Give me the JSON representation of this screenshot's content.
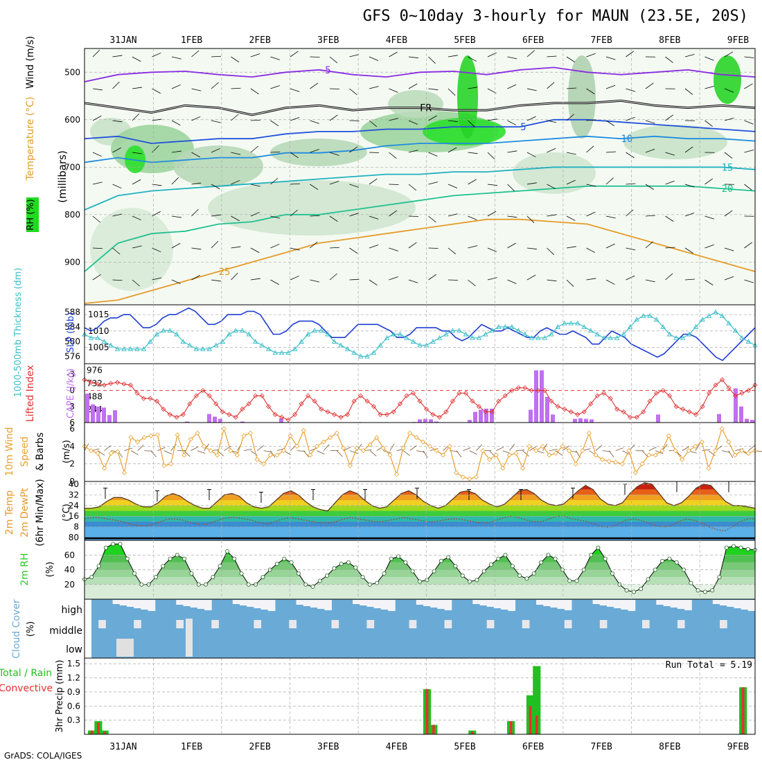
{
  "title": "GFS 0~10day 3-hourly for MAUN (23.5E, 20S)",
  "footer": "GrADS: COLA/IGES",
  "colors": {
    "rh_green": "#1edc1e",
    "temp_purple": "#8a2be2",
    "temp_blue": "#1e50dc",
    "temp_teal": "#20b0a0",
    "temp_orange": "#e69a28",
    "temp_red": "#d82040",
    "slp_blue": "#1e3cd2",
    "thickness_cyan": "#3cbec8",
    "cape_violet": "#c070f0",
    "li_red": "#e03030",
    "wind_orange": "#e8a030",
    "rh2m_green": "#28c828",
    "cloud_blue": "#6aaad6",
    "rain_green": "#20c020",
    "conv_red": "#e83030"
  },
  "chart_data": [
    {
      "id": "upper_air",
      "type": "heatmap",
      "ylabel": "(millibars)",
      "left_label": "Wind (m/s)",
      "temperature_label": "Temperature (°C)",
      "rh_label": "RH (%)",
      "y_ticks": [
        500,
        600,
        700,
        800,
        900
      ],
      "contours": [
        {
          "label": "-5",
          "level": -5,
          "color": "#8a2be2",
          "pressure": [
            520,
            505,
            500,
            498,
            505,
            510,
            500,
            495,
            505,
            510,
            500,
            498,
            505,
            495,
            490,
            500,
            505,
            500,
            495,
            505,
            510
          ]
        },
        {
          "label": "FR",
          "level": 0,
          "color": "#000000",
          "pressure": [
            565,
            575,
            585,
            570,
            575,
            590,
            575,
            570,
            580,
            575,
            575,
            580,
            580,
            570,
            565,
            565,
            560,
            570,
            575,
            570,
            575
          ]
        },
        {
          "label": "5",
          "level": 5,
          "color": "#1e50dc",
          "pressure": [
            640,
            635,
            650,
            645,
            640,
            640,
            630,
            625,
            625,
            620,
            620,
            615,
            615,
            615,
            600,
            600,
            605,
            610,
            615,
            620,
            625
          ]
        },
        {
          "label": "10",
          "level": 10,
          "color": "#1e8ce0",
          "pressure": [
            690,
            680,
            690,
            685,
            680,
            680,
            670,
            670,
            665,
            655,
            650,
            650,
            650,
            645,
            640,
            635,
            640,
            635,
            640,
            640,
            645
          ]
        },
        {
          "label": "15",
          "level": 15,
          "color": "#20b0c0",
          "pressure": [
            790,
            760,
            750,
            745,
            740,
            735,
            730,
            725,
            720,
            715,
            715,
            710,
            710,
            705,
            700,
            700,
            700,
            700,
            700,
            700,
            705
          ]
        },
        {
          "label": "20",
          "level": 20,
          "color": "#20c090",
          "pressure": [
            920,
            860,
            840,
            835,
            820,
            815,
            800,
            800,
            790,
            780,
            770,
            760,
            755,
            750,
            745,
            740,
            740,
            740,
            740,
            745,
            750
          ]
        },
        {
          "label": "25",
          "level": 25,
          "color": "#e69a28",
          "pressure": [
            990,
            980,
            960,
            940,
            920,
            900,
            880,
            860,
            850,
            840,
            830,
            820,
            810,
            810,
            815,
            820,
            840,
            860,
            880,
            900,
            920
          ]
        }
      ]
    },
    {
      "id": "slp_thickness",
      "type": "line",
      "left_label": "1000-500mb Thickness (dm)",
      "right_label": "SLP (mb)",
      "thickness_ticks": [
        576,
        580,
        584,
        588
      ],
      "slp_ticks": [
        1005,
        1010,
        1015
      ],
      "slp": [
        1011,
        1010,
        1011,
        1013,
        1014,
        1014,
        1015,
        1015,
        1013,
        1011,
        1011,
        1012,
        1014,
        1015,
        1015,
        1016,
        1017,
        1016,
        1014,
        1012,
        1012,
        1013,
        1015,
        1015,
        1015,
        1016,
        1016,
        1015,
        1012,
        1009,
        1009,
        1010,
        1012,
        1013,
        1013,
        1013,
        1012,
        1010,
        1008,
        1008,
        1008,
        1010,
        1012,
        1012,
        1012,
        1012,
        1011,
        1010,
        1008,
        1008,
        1009,
        1011,
        1011,
        1011,
        1011,
        1010,
        1010,
        1008,
        1007,
        1008,
        1010,
        1012,
        1011,
        1010,
        1010,
        1011,
        1010,
        1009,
        1008,
        1008,
        1010,
        1011,
        1010,
        1009,
        1009,
        1010,
        1009,
        1008,
        1006,
        1006,
        1008,
        1010,
        1009,
        1008,
        1006,
        1005,
        1004,
        1003,
        1002,
        1003,
        1005,
        1007,
        1009,
        1009,
        1008,
        1006,
        1004,
        1002,
        1001,
        1003,
        1005,
        1007,
        1009,
        1011
      ],
      "thickness": [
        582,
        581,
        581,
        580,
        579,
        578,
        578,
        578,
        578,
        578,
        580,
        582,
        583,
        583,
        582,
        580,
        579,
        578,
        578,
        578,
        579,
        580,
        582,
        583,
        583,
        582,
        580,
        579,
        578,
        577,
        577,
        577,
        578,
        580,
        582,
        583,
        583,
        582,
        580,
        579,
        578,
        577,
        576,
        576,
        577,
        579,
        581,
        582,
        582,
        581,
        580,
        579,
        579,
        580,
        581,
        582,
        583,
        583,
        582,
        581,
        581,
        582,
        583,
        584,
        584,
        584,
        583,
        582,
        581,
        581,
        581,
        582,
        584,
        585,
        585,
        585,
        584,
        583,
        582,
        581,
        581,
        581,
        582,
        584,
        586,
        587,
        587,
        586,
        584,
        582,
        581,
        581,
        582,
        584,
        586,
        587,
        588,
        587,
        585,
        583,
        581,
        580,
        579
      ]
    },
    {
      "id": "cape_li",
      "type": "bar",
      "left_label": "Lifted Index",
      "right_label": "CAPE (J/kg)",
      "li_ticks": [
        -3,
        0,
        3,
        6
      ],
      "cape_ticks": [
        244,
        488,
        732,
        976
      ],
      "lifted_index": [
        -2,
        -1.5,
        -1.2,
        -1.0,
        -1.3,
        -1.5,
        -1.2,
        -1.0,
        0.5,
        1.5,
        1.5,
        2.0,
        3.5,
        4.5,
        5.0,
        4.5,
        2.5,
        1.0,
        0.0,
        1.0,
        2.5,
        4.0,
        4.5,
        5.0,
        3.5,
        2.5,
        1.0,
        1.0,
        3.0,
        4.5,
        5.0,
        5.5,
        4.5,
        2.5,
        1.0,
        2.0,
        3.5,
        4.0,
        4.5,
        5.0,
        4.5,
        2.0,
        1.0,
        2.0,
        3.0,
        4.5,
        4.5,
        4.0,
        2.5,
        1.0,
        0.5,
        2.0,
        3.5,
        4.5,
        5.0,
        4.0,
        2.0,
        0.5,
        0.5,
        2.0,
        3.0,
        4.0,
        4.0,
        2.0,
        1.0,
        0.0,
        -0.5,
        -0.5,
        0.0,
        0.0,
        0.0,
        2.0,
        3.0,
        3.5,
        4.0,
        4.5,
        4.0,
        2.5,
        1.0,
        0.5,
        1.5,
        3.5,
        4.0,
        5.0,
        5.0,
        4.0,
        2.0,
        0.5,
        0.0,
        1.0,
        3.0,
        3.5,
        4.0,
        4.5,
        3.0,
        0.5,
        -1.0,
        -2.0,
        -0.5,
        1.0,
        0.5,
        0.0,
        -1.0
      ],
      "cape": [
        540,
        340,
        300,
        280,
        140,
        230,
        0,
        0,
        0,
        0,
        0,
        0,
        0,
        0,
        0,
        0,
        0,
        0,
        20,
        0,
        0,
        0,
        160,
        110,
        70,
        0,
        0,
        0,
        20,
        0,
        0,
        0,
        0,
        0,
        0,
        80,
        0,
        0,
        0,
        0,
        0,
        0,
        0,
        0,
        0,
        0,
        0,
        0,
        0,
        10,
        0,
        0,
        0,
        0,
        0,
        0,
        0,
        0,
        0,
        10,
        60,
        70,
        60,
        20,
        0,
        0,
        0,
        0,
        0,
        50,
        200,
        240,
        260,
        260,
        0,
        0,
        0,
        0,
        0,
        0,
        240,
        976,
        976,
        480,
        150,
        0,
        0,
        0,
        70,
        80,
        70,
        60,
        0,
        0,
        0,
        0,
        0,
        0,
        0,
        0,
        0,
        0,
        0,
        150,
        0,
        0,
        0,
        0,
        0,
        0,
        0,
        0,
        0,
        0,
        160,
        0,
        0,
        640,
        300,
        70,
        50
      ]
    },
    {
      "id": "wind10m",
      "type": "line",
      "left_label": "10m Wind",
      "left_label2": "Speed",
      "left_label3": "& Barbs",
      "ylabel": "(m/s)",
      "y_ticks": [
        0,
        2,
        4,
        6
      ],
      "speed": [
        4.0,
        3.5,
        3.2,
        1.5,
        3.2,
        3.4,
        1.0,
        5.0,
        4.5,
        5.0,
        5.2,
        5.3,
        1.8,
        2.0,
        5.3,
        3.0,
        4.8,
        5.5,
        4.0,
        3.5,
        3.0,
        6.0,
        3.5,
        3.0,
        5.2,
        5.5,
        2.5,
        2.0,
        3.0,
        3.0,
        3.5,
        5.2,
        4.0,
        5.8,
        3.0,
        4.0,
        4.5,
        5.0,
        5.5,
        3.8,
        1.8,
        3.8,
        3.5,
        4.2,
        5.0,
        3.8,
        3.0,
        0.8,
        3.8,
        5.5,
        5.0,
        4.5,
        4.0,
        3.5,
        3.0,
        4.0,
        1.0,
        0.5,
        0.3,
        0.5,
        3.5,
        2.5,
        3.0,
        1.5,
        3.0,
        3.2,
        1.5,
        4.0,
        3.5,
        4.0,
        3.0,
        3.2,
        4.0,
        3.5,
        2.0,
        3.5,
        5.5,
        3.0,
        2.5,
        2.3,
        2.2,
        2.0,
        3.5,
        1.0,
        2.0,
        3.0,
        3.0,
        3.5,
        5.2,
        3.5,
        2.5,
        3.5,
        4.0,
        4.5,
        1.5,
        3.5,
        6.0,
        4.5,
        3.0,
        3.5,
        3.2,
        3.5
      ]
    },
    {
      "id": "temp2m",
      "type": "area",
      "left_label": "2m Temp",
      "left_label2": "2m DewPt",
      "left_label3": "(6hr Min/Max)",
      "ylabel": "(°C)",
      "y_ticks": [
        0,
        8,
        16,
        24,
        32,
        40
      ],
      "tick_prefix": "8",
      "temperature": [
        22,
        22,
        23,
        27,
        30,
        30,
        28,
        25,
        23,
        23,
        26,
        31,
        33,
        31,
        27,
        24,
        22,
        22,
        27,
        32,
        33,
        31,
        26,
        23,
        22,
        23,
        28,
        33,
        35,
        32,
        27,
        23,
        21,
        20,
        26,
        32,
        35,
        33,
        28,
        24,
        22,
        23,
        28,
        33,
        35,
        32,
        27,
        24,
        22,
        24,
        29,
        34,
        35,
        33,
        28,
        25,
        23,
        25,
        30,
        35,
        36,
        33,
        28,
        25,
        24,
        25,
        30,
        35,
        39,
        36,
        29,
        25,
        24,
        26,
        33,
        38,
        41,
        40,
        33,
        26,
        24,
        26,
        31,
        37,
        40,
        39,
        33,
        27,
        24,
        24,
        23,
        22
      ],
      "dewpoint": [
        14,
        15,
        15,
        14,
        13,
        12,
        10,
        9,
        9,
        10,
        12,
        14,
        14,
        13,
        11,
        10,
        10,
        12,
        14,
        15,
        15,
        14,
        13,
        11,
        10,
        12,
        14,
        15,
        14,
        13,
        12,
        11,
        11,
        12,
        14,
        15,
        14,
        13,
        12,
        12,
        13,
        14,
        15,
        14,
        13,
        12,
        12,
        13,
        14,
        14,
        13,
        12,
        11,
        11,
        13,
        15,
        16,
        15,
        13,
        12,
        12,
        14,
        16,
        16,
        14,
        13,
        12,
        10,
        8,
        8,
        10,
        13,
        14,
        13,
        11,
        9,
        8,
        9,
        12,
        14,
        13,
        11,
        8,
        6,
        5,
        8,
        12,
        14,
        14
      ],
      "max_ticks": [
        37,
        35,
        36,
        34,
        36,
        36,
        37,
        36,
        36,
        37,
        40,
        42,
        42
      ]
    },
    {
      "id": "rh2m",
      "type": "area",
      "left_label": "2m RH",
      "ylabel": "(%)",
      "y_ticks": [
        20,
        40,
        60
      ],
      "values": [
        27,
        30,
        45,
        70,
        75,
        75,
        55,
        35,
        20,
        20,
        30,
        45,
        55,
        60,
        55,
        35,
        20,
        20,
        30,
        45,
        65,
        55,
        35,
        20,
        20,
        30,
        40,
        48,
        55,
        50,
        35,
        20,
        17,
        25,
        32,
        42,
        48,
        50,
        43,
        30,
        20,
        22,
        35,
        55,
        58,
        50,
        38,
        24,
        26,
        38,
        52,
        57,
        45,
        32,
        24,
        26,
        38,
        47,
        55,
        60,
        45,
        32,
        28,
        35,
        50,
        60,
        55,
        40,
        25,
        25,
        40,
        60,
        70,
        55,
        35,
        20,
        12,
        10,
        14,
        27,
        40,
        52,
        55,
        50,
        40,
        22,
        12,
        10,
        12,
        30,
        70,
        72,
        70,
        68,
        67
      ]
    },
    {
      "id": "cloud_cover",
      "type": "heatmap",
      "left_label": "Cloud Cover",
      "ylabel": "(%)",
      "rows": [
        "high",
        "middle",
        "low"
      ]
    },
    {
      "id": "precip",
      "type": "bar",
      "left_label": "Total / Rain",
      "left_label2": "Convective",
      "ylabel": "3hr Precip (mm)",
      "y_ticks": [
        0.3,
        0.6,
        0.9,
        1.2,
        1.5
      ],
      "annotation": "Run Total = 5.19",
      "bars": [
        {
          "index": 0,
          "total": 0.08,
          "conv": 0.08
        },
        {
          "index": 1,
          "total": 0.28,
          "conv": 0.25
        },
        {
          "index": 2,
          "total": 0.08,
          "conv": 0.06
        },
        {
          "index": 52,
          "total": 0.96,
          "conv": 0.96
        },
        {
          "index": 53,
          "total": 0.2,
          "conv": 0.2
        },
        {
          "index": 59,
          "total": 0.08,
          "conv": 0.06
        },
        {
          "index": 65,
          "total": 0.28,
          "conv": 0.28
        },
        {
          "index": 68,
          "total": 0.83,
          "conv": 0.6
        },
        {
          "index": 69,
          "total": 1.45,
          "conv": 0.4
        },
        {
          "index": 101,
          "total": 1.0,
          "conv": 1.0
        }
      ]
    }
  ],
  "dates": [
    "31JAN",
    "1FEB",
    "2FEB",
    "3FEB",
    "4FEB",
    "5FEB",
    "6FEB",
    "7FEB",
    "8FEB",
    "9FEB"
  ]
}
